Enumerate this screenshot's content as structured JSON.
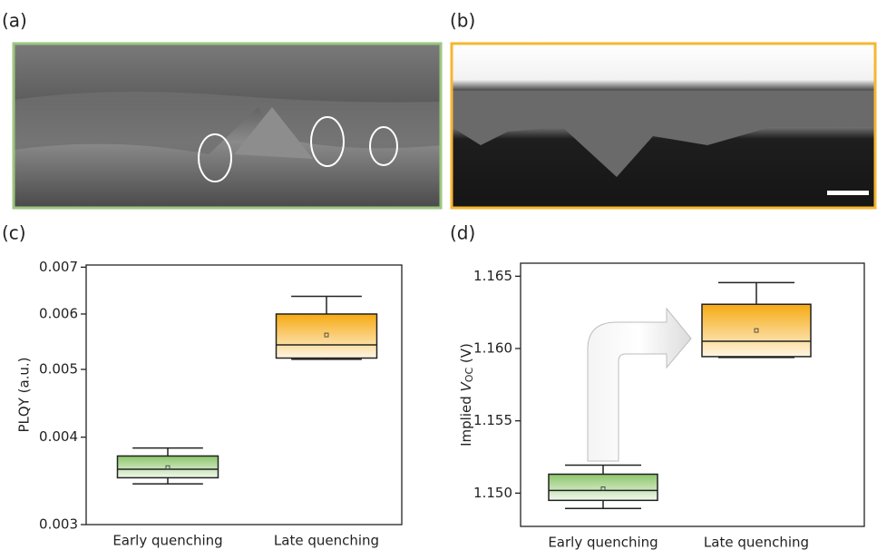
{
  "panels": {
    "a": "(a)",
    "b": "(b)"
  },
  "chart_data": [
    {
      "type": "box",
      "panel": "(c)",
      "y_label": "PLQY (a.u.)",
      "log_y": true,
      "ylim": [
        0.003,
        0.00705
      ],
      "yticks": [
        0.003,
        0.004,
        0.005,
        0.006,
        0.007
      ],
      "categories": [
        "Early quenching",
        "Late quenching"
      ],
      "boxes": [
        {
          "whisker_low": 0.00343,
          "q1": 0.0035,
          "median": 0.0036,
          "q3": 0.00376,
          "whisker_high": 0.00386,
          "mean": 0.00362,
          "color": "#8cc66a"
        },
        {
          "whisker_low": 0.00517,
          "q1": 0.00519,
          "median": 0.00542,
          "q3": 0.006,
          "whisker_high": 0.00636,
          "mean": 0.0056,
          "color": "#f6aa12"
        }
      ]
    },
    {
      "type": "box",
      "panel": "(d)",
      "y_label": {
        "prefix": "Implied ",
        "var": "V",
        "sub": "OC",
        "unit": " (V)"
      },
      "log_y": false,
      "ylim": [
        1.1477,
        1.1659
      ],
      "yticks": [
        {
          "value": 1.15,
          "label": "1.150"
        },
        1.155,
        {
          "value": 1.16,
          "label": "1.160"
        },
        1.165
      ],
      "categories": [
        "Early quenching",
        "Late quenching"
      ],
      "boxes": [
        {
          "whisker_low": 1.14894,
          "q1": 1.1495,
          "median": 1.15019,
          "q3": 1.15131,
          "whisker_high": 1.15194,
          "mean": 1.15031,
          "color": "#8cc66a"
        },
        {
          "whisker_low": 1.15938,
          "q1": 1.15944,
          "median": 1.1605,
          "q3": 1.16306,
          "whisker_high": 1.16456,
          "mean": 1.16125,
          "color": "#f6aa12"
        }
      ]
    }
  ]
}
